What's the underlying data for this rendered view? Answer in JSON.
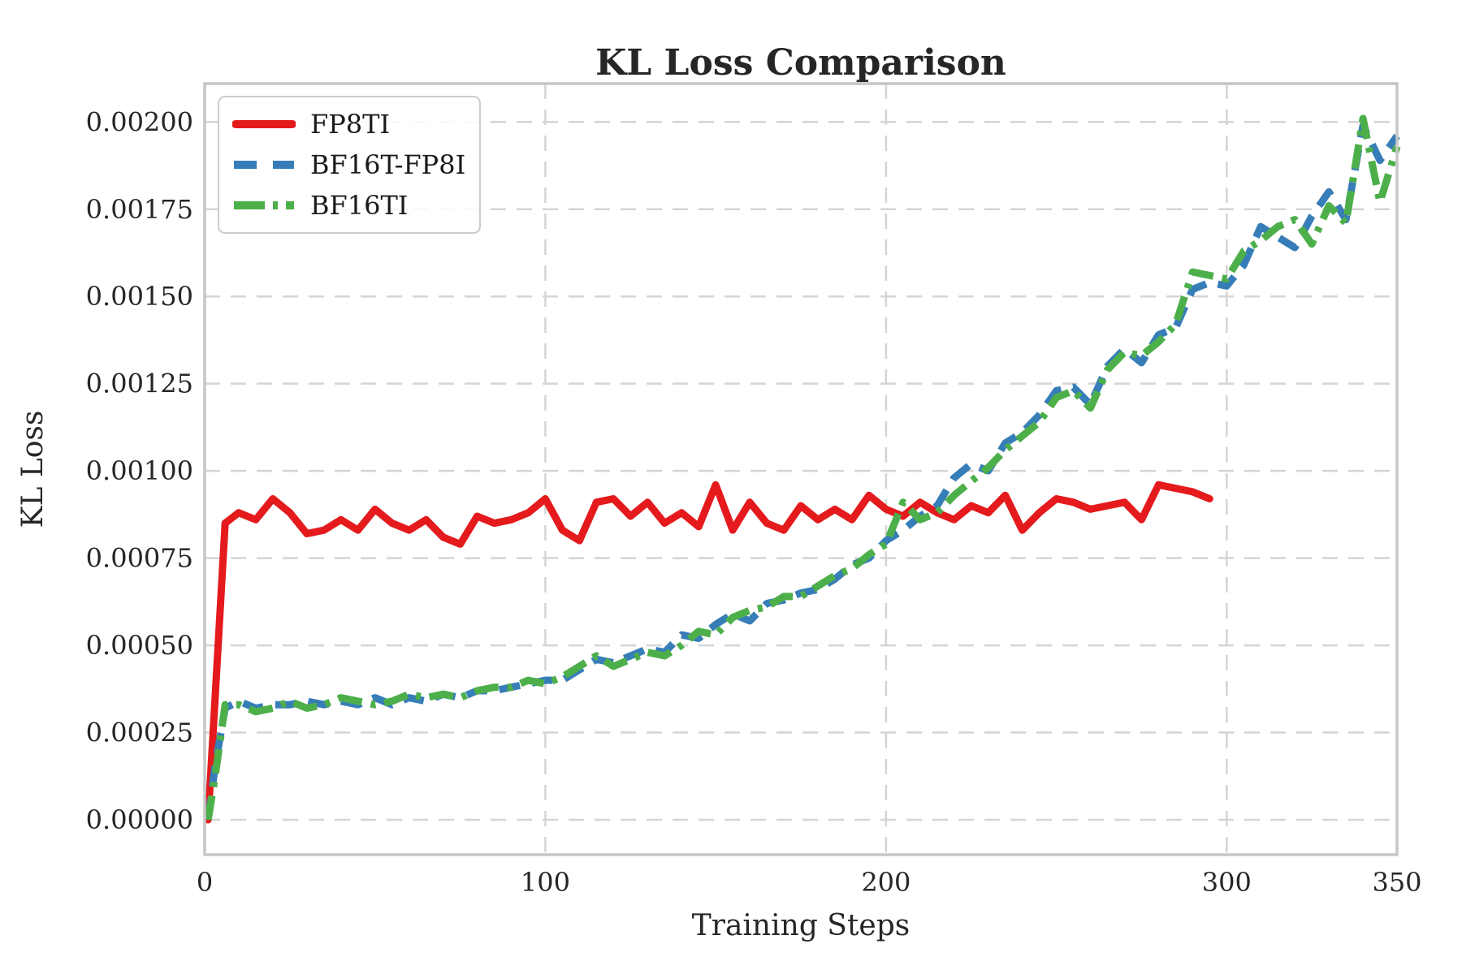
{
  "chart_data": {
    "type": "line",
    "title": "KL Loss Comparison",
    "xlabel": "Training Steps",
    "ylabel": "KL Loss",
    "xlim": [
      0,
      350
    ],
    "ylim": [
      -0.0001,
      0.00211
    ],
    "grid": true,
    "grid_style": "dashed",
    "legend_position": "upper left",
    "xticks": [
      {
        "value": 0,
        "label": "0"
      },
      {
        "value": 100,
        "label": "100"
      },
      {
        "value": 200,
        "label": "200"
      },
      {
        "value": 300,
        "label": "300"
      },
      {
        "value": 350,
        "label": "350"
      }
    ],
    "yticks": [
      {
        "value": 0.0,
        "label": "0.00000"
      },
      {
        "value": 0.00025,
        "label": "0.00025"
      },
      {
        "value": 0.0005,
        "label": "0.00050"
      },
      {
        "value": 0.00075,
        "label": "0.00075"
      },
      {
        "value": 0.001,
        "label": "0.00100"
      },
      {
        "value": 0.00125,
        "label": "0.00125"
      },
      {
        "value": 0.0015,
        "label": "0.00150"
      },
      {
        "value": 0.00175,
        "label": "0.00175"
      },
      {
        "value": 0.002,
        "label": "0.00200"
      }
    ],
    "xgridlines": [
      100,
      200,
      300
    ],
    "series": [
      {
        "name": "FP8TI",
        "color": "#e41a1c",
        "style": "solid",
        "x": [
          1,
          6,
          10,
          15,
          20,
          25,
          30,
          35,
          40,
          45,
          50,
          55,
          60,
          65,
          70,
          75,
          80,
          85,
          90,
          95,
          100,
          105,
          110,
          115,
          120,
          125,
          130,
          135,
          140,
          145,
          150,
          155,
          160,
          165,
          170,
          175,
          180,
          185,
          190,
          195,
          200,
          205,
          210,
          215,
          220,
          225,
          230,
          235,
          240,
          245,
          250,
          255,
          260,
          265,
          270,
          275,
          280,
          285,
          290,
          295
        ],
        "values": [
          0.0,
          0.00085,
          0.00088,
          0.00086,
          0.00092,
          0.00088,
          0.00082,
          0.00083,
          0.00086,
          0.00083,
          0.00089,
          0.00085,
          0.00083,
          0.00086,
          0.00081,
          0.00079,
          0.00087,
          0.00085,
          0.00086,
          0.00088,
          0.00092,
          0.00083,
          0.0008,
          0.00091,
          0.00092,
          0.00087,
          0.00091,
          0.00085,
          0.00088,
          0.00084,
          0.00096,
          0.00083,
          0.00091,
          0.00085,
          0.00083,
          0.0009,
          0.00086,
          0.00089,
          0.00086,
          0.00093,
          0.00089,
          0.00087,
          0.00091,
          0.00088,
          0.00086,
          0.0009,
          0.00088,
          0.00093,
          0.00083,
          0.00088,
          0.00092,
          0.00091,
          0.00089,
          0.0009,
          0.00091,
          0.00086,
          0.00096,
          0.00095,
          0.00094,
          0.00092
        ]
      },
      {
        "name": "BF16T-FP8I",
        "color": "#377eb8",
        "style": "dashed",
        "x": [
          1,
          3,
          6,
          10,
          15,
          20,
          25,
          30,
          35,
          40,
          45,
          50,
          55,
          60,
          65,
          70,
          75,
          80,
          85,
          90,
          95,
          100,
          105,
          110,
          115,
          120,
          125,
          130,
          135,
          140,
          145,
          150,
          155,
          160,
          165,
          170,
          175,
          180,
          185,
          190,
          195,
          200,
          205,
          210,
          215,
          220,
          225,
          230,
          235,
          240,
          245,
          250,
          255,
          260,
          265,
          270,
          275,
          280,
          285,
          290,
          295,
          300,
          305,
          310,
          315,
          320,
          325,
          330,
          335,
          340,
          345,
          350
        ],
        "values": [
          0.0,
          0.00015,
          0.00032,
          0.00034,
          0.00032,
          0.00033,
          0.00033,
          0.00034,
          0.00033,
          0.00034,
          0.00033,
          0.00035,
          0.00033,
          0.00035,
          0.00034,
          0.00036,
          0.00035,
          0.00037,
          0.00037,
          0.00038,
          0.00039,
          0.0004,
          0.0004,
          0.00043,
          0.00046,
          0.00045,
          0.00047,
          0.00049,
          0.00048,
          0.00053,
          0.00052,
          0.00056,
          0.00059,
          0.00057,
          0.00062,
          0.00063,
          0.00065,
          0.00066,
          0.00069,
          0.00073,
          0.00075,
          0.0008,
          0.00083,
          0.00087,
          0.0009,
          0.00098,
          0.00102,
          0.001,
          0.00108,
          0.00111,
          0.00116,
          0.00123,
          0.00124,
          0.00119,
          0.0013,
          0.00135,
          0.00131,
          0.00139,
          0.00141,
          0.00152,
          0.00154,
          0.00153,
          0.00159,
          0.0017,
          0.00167,
          0.00164,
          0.00173,
          0.0018,
          0.00172,
          0.00199,
          0.00189,
          0.00196
        ]
      },
      {
        "name": "BF16TI",
        "color": "#4daf4a",
        "style": "dashdot",
        "x": [
          1,
          3,
          6,
          10,
          15,
          20,
          25,
          30,
          35,
          40,
          45,
          50,
          55,
          60,
          65,
          70,
          75,
          80,
          85,
          90,
          95,
          100,
          105,
          110,
          115,
          120,
          125,
          130,
          135,
          140,
          145,
          150,
          155,
          160,
          165,
          170,
          175,
          180,
          185,
          190,
          195,
          200,
          205,
          210,
          215,
          220,
          225,
          230,
          235,
          240,
          245,
          250,
          255,
          260,
          265,
          270,
          275,
          280,
          285,
          290,
          295,
          300,
          305,
          310,
          315,
          320,
          325,
          330,
          335,
          340,
          345,
          350
        ],
        "values": [
          0.0,
          0.00012,
          0.00033,
          0.00033,
          0.00031,
          0.00032,
          0.00034,
          0.00032,
          0.00033,
          0.00035,
          0.00034,
          0.00033,
          0.00034,
          0.00036,
          0.00035,
          0.00036,
          0.00035,
          0.00037,
          0.00038,
          0.00038,
          0.0004,
          0.00039,
          0.00041,
          0.00044,
          0.00047,
          0.00044,
          0.00046,
          0.00048,
          0.00047,
          0.0005,
          0.00054,
          0.00053,
          0.00058,
          0.0006,
          0.00061,
          0.00064,
          0.00064,
          0.00067,
          0.0007,
          0.00072,
          0.00076,
          0.00079,
          0.00091,
          0.00086,
          0.00088,
          0.00093,
          0.00097,
          0.00101,
          0.00106,
          0.0011,
          0.00114,
          0.00121,
          0.00123,
          0.00118,
          0.00129,
          0.00134,
          0.00133,
          0.00137,
          0.00142,
          0.00157,
          0.00156,
          0.00155,
          0.00163,
          0.00166,
          0.0017,
          0.00172,
          0.00165,
          0.00176,
          0.00171,
          0.00201,
          0.00177,
          0.00193
        ]
      }
    ]
  }
}
